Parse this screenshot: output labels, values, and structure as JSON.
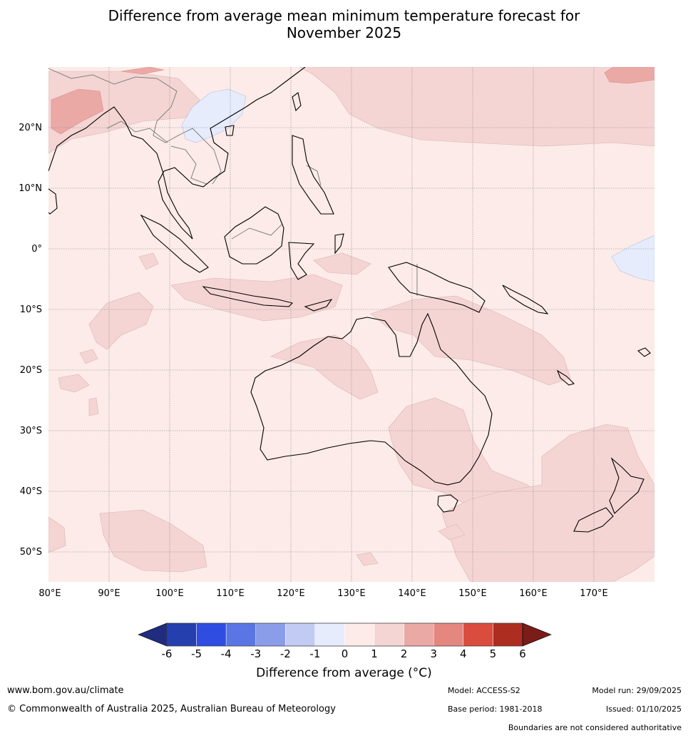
{
  "title": {
    "line1": "Difference from average mean minimum temperature forecast for",
    "line2": "November 2025"
  },
  "map": {
    "lon_ticks": [
      "80°E",
      "90°E",
      "100°E",
      "110°E",
      "120°E",
      "130°E",
      "140°E",
      "150°E",
      "160°E",
      "170°E"
    ],
    "lat_ticks": [
      "20°N",
      "10°N",
      "0°",
      "10°S",
      "20°S",
      "30°S",
      "40°S",
      "50°S"
    ],
    "extent": {
      "lon_min": 80,
      "lon_max": 180,
      "lat_min": -55,
      "lat_max": 30
    }
  },
  "colorbar": {
    "ticks": [
      "-6",
      "-5",
      "-4",
      "-3",
      "-2",
      "-1",
      "0",
      "1",
      "2",
      "3",
      "4",
      "5",
      "6"
    ],
    "colors": [
      "#1f2c7f",
      "#263fae",
      "#2f4de1",
      "#5a75e4",
      "#8a9de9",
      "#c2cbf3",
      "#e6ecfb",
      "#fcebe8",
      "#f4d5d3",
      "#eba9a6",
      "#e4877f",
      "#da4c3e",
      "#ad2d21",
      "#7a1c18"
    ],
    "label": "Difference from average (°C)"
  },
  "colors": {
    "band_0_1": "#fcebe8",
    "band_1_2": "#f4d5d3",
    "band_2_3": "#eba9a6",
    "band_m1_0": "#e6ecfb",
    "coast": "#000000",
    "border": "#808080",
    "grid": "#888888"
  },
  "footer": {
    "website": "www.bom.gov.au/climate",
    "copyright": "© Commonwealth of Australia 2025, Australian Bureau of Meteorology",
    "model": "Model: ACCESS-S2",
    "model_run": "Model run: 29/09/2025",
    "base_period": "Base period: 1981-2018",
    "issued": "Issued: 01/10/2025",
    "disclaimer": "Boundaries are not considered authoritative"
  }
}
